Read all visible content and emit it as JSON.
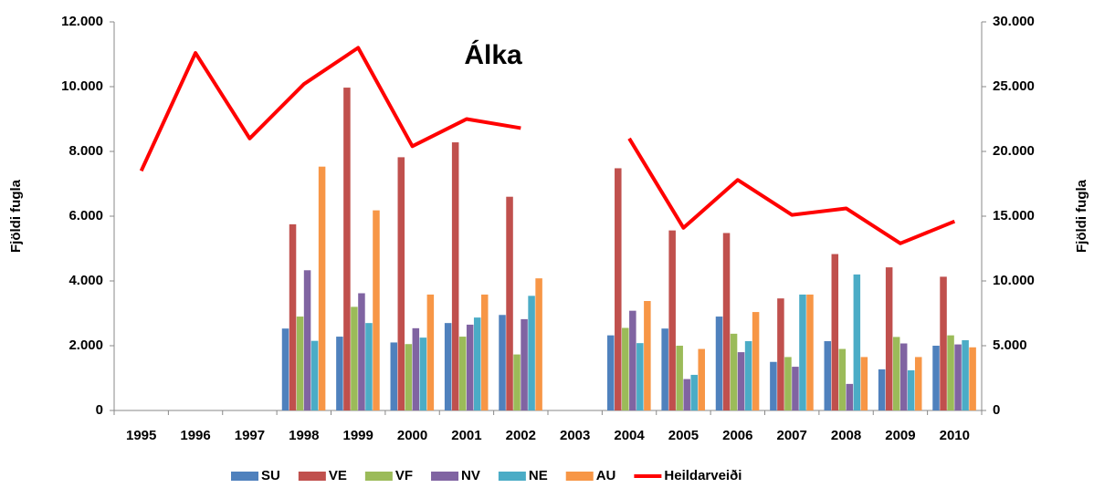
{
  "chart_data": {
    "type": "bar",
    "title": "Álka",
    "ylabel": "Fjöldi fugla",
    "y2label": "Fjöldi fugla",
    "categories": [
      "1995",
      "1996",
      "1997",
      "1998",
      "1999",
      "2000",
      "2001",
      "2002",
      "2003",
      "2004",
      "2005",
      "2006",
      "2007",
      "2008",
      "2009",
      "2010"
    ],
    "series": [
      {
        "name": "SU",
        "color": "#4f81bd",
        "values": [
          null,
          null,
          null,
          2530,
          2280,
          2100,
          2700,
          2950,
          null,
          2320,
          2530,
          2900,
          1500,
          2140,
          1270,
          2000
        ]
      },
      {
        "name": "VE",
        "color": "#c0504d",
        "values": [
          null,
          null,
          null,
          5750,
          9970,
          7820,
          8280,
          6600,
          null,
          7480,
          5560,
          5480,
          3460,
          4830,
          4420,
          4130
        ]
      },
      {
        "name": "VF",
        "color": "#9bbb59",
        "values": [
          null,
          null,
          null,
          2900,
          3200,
          2050,
          2280,
          1730,
          null,
          2550,
          2000,
          2370,
          1650,
          1900,
          2270,
          2320
        ]
      },
      {
        "name": "NV",
        "color": "#8064a2",
        "values": [
          null,
          null,
          null,
          4330,
          3620,
          2540,
          2650,
          2820,
          null,
          3080,
          970,
          1800,
          1350,
          820,
          2070,
          2040
        ]
      },
      {
        "name": "NE",
        "color": "#4bacc6",
        "values": [
          null,
          null,
          null,
          2150,
          2700,
          2250,
          2870,
          3540,
          null,
          2080,
          1100,
          2140,
          3580,
          4200,
          1240,
          2170
        ]
      },
      {
        "name": "AU",
        "color": "#f79646",
        "values": [
          null,
          null,
          null,
          7530,
          6180,
          3580,
          3580,
          4080,
          null,
          3380,
          1900,
          3040,
          3580,
          1650,
          1650,
          1950
        ]
      },
      {
        "name": "Heildarveiði",
        "color": "#ff0000",
        "type": "line",
        "axis": "y2",
        "values": [
          18500,
          27600,
          21000,
          25200,
          28000,
          20400,
          22500,
          21800,
          null,
          21000,
          14100,
          17800,
          15100,
          15600,
          12900,
          14600
        ]
      }
    ],
    "ylim": [
      0,
      12000
    ],
    "yticks": [
      0,
      {
        "value": 2000,
        "label": "2.000"
      },
      {
        "value": 4000,
        "label": "4.000"
      },
      {
        "value": 6000,
        "label": "6.000"
      },
      {
        "value": 8000,
        "label": "8.000"
      },
      {
        "value": 10000,
        "label": "10.000"
      },
      {
        "value": 12000,
        "label": "12.000"
      }
    ],
    "y2lim": [
      0,
      30000
    ],
    "y2ticks": [
      0,
      {
        "value": 5000,
        "label": "5.000"
      },
      {
        "value": 10000,
        "label": "10.000"
      },
      {
        "value": 15000,
        "label": "15.000"
      },
      {
        "value": 20000,
        "label": "20.000"
      },
      {
        "value": 25000,
        "label": "25.000"
      },
      {
        "value": 30000,
        "label": "30.000"
      }
    ],
    "y2color": "#ff0000",
    "grid": false,
    "legend": "bottom"
  }
}
